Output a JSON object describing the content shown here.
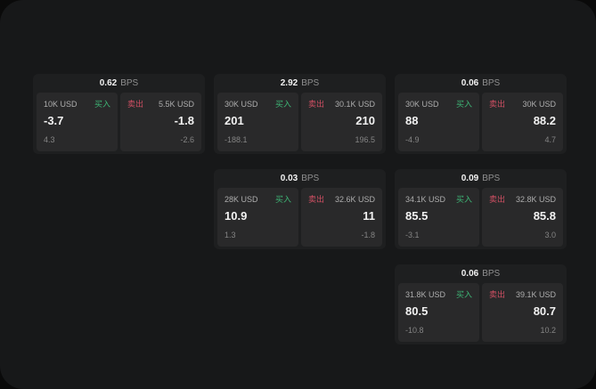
{
  "labels": {
    "bps_unit": "BPS",
    "buy": "买入",
    "sell": "卖出"
  },
  "colors": {
    "page_bg": "#0a0a0a",
    "window_bg": "#171819",
    "card_bg": "#1e1f20",
    "panel_bg": "#29292a",
    "buy_green": "#3eb575",
    "sell_red": "#cf4f63"
  },
  "cards": [
    {
      "bps": "0.62",
      "buy": {
        "amount": "10K USD",
        "price": "-3.7",
        "delta": "4.3"
      },
      "sell": {
        "amount": "5.5K USD",
        "price": "-1.8",
        "delta": "-2.6"
      }
    },
    {
      "bps": "2.92",
      "buy": {
        "amount": "30K USD",
        "price": "201",
        "delta": "-188.1"
      },
      "sell": {
        "amount": "30.1K USD",
        "price": "210",
        "delta": "196.5"
      }
    },
    {
      "bps": "0.06",
      "buy": {
        "amount": "30K USD",
        "price": "88",
        "delta": "-4.9"
      },
      "sell": {
        "amount": "30K USD",
        "price": "88.2",
        "delta": "4.7"
      }
    },
    {
      "bps": "0.03",
      "buy": {
        "amount": "28K USD",
        "price": "10.9",
        "delta": "1.3"
      },
      "sell": {
        "amount": "32.6K USD",
        "price": "11",
        "delta": "-1.8"
      }
    },
    {
      "bps": "0.09",
      "buy": {
        "amount": "34.1K USD",
        "price": "85.5",
        "delta": "-3.1"
      },
      "sell": {
        "amount": "32.8K USD",
        "price": "85.8",
        "delta": "3.0"
      }
    },
    {
      "bps": "0.06",
      "buy": {
        "amount": "31.8K USD",
        "price": "80.5",
        "delta": "-10.8"
      },
      "sell": {
        "amount": "39.1K USD",
        "price": "80.7",
        "delta": "10.2"
      }
    }
  ]
}
